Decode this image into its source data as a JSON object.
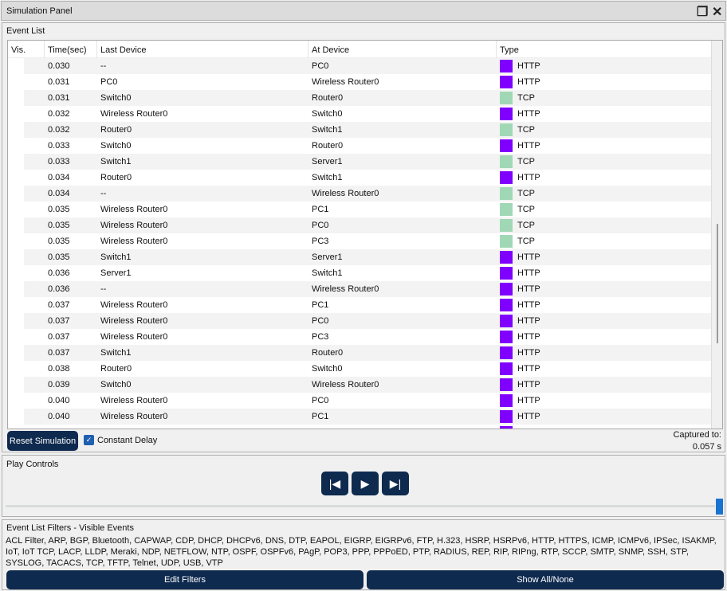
{
  "window": {
    "title": "Simulation Panel",
    "restore_icon": "restore-icon",
    "close_icon": "close-icon"
  },
  "event_list": {
    "label": "Event List",
    "columns": [
      "Vis.",
      "Time(sec)",
      "Last Device",
      "At Device",
      "Type"
    ],
    "type_colors": {
      "HTTP": "#8000ff",
      "TCP": "#a0d8b5"
    },
    "rows": [
      [
        "0.030",
        "--",
        "PC0",
        "HTTP"
      ],
      [
        "0.031",
        "PC0",
        "Wireless Router0",
        "HTTP"
      ],
      [
        "0.031",
        "Switch0",
        "Router0",
        "TCP"
      ],
      [
        "0.032",
        "Wireless Router0",
        "Switch0",
        "HTTP"
      ],
      [
        "0.032",
        "Router0",
        "Switch1",
        "TCP"
      ],
      [
        "0.033",
        "Switch0",
        "Router0",
        "HTTP"
      ],
      [
        "0.033",
        "Switch1",
        "Server1",
        "TCP"
      ],
      [
        "0.034",
        "Router0",
        "Switch1",
        "HTTP"
      ],
      [
        "0.034",
        "--",
        "Wireless Router0",
        "TCP"
      ],
      [
        "0.035",
        "Wireless Router0",
        "PC1",
        "TCP"
      ],
      [
        "0.035",
        "Wireless Router0",
        "PC0",
        "TCP"
      ],
      [
        "0.035",
        "Wireless Router0",
        "PC3",
        "TCP"
      ],
      [
        "0.035",
        "Switch1",
        "Server1",
        "HTTP"
      ],
      [
        "0.036",
        "Server1",
        "Switch1",
        "HTTP"
      ],
      [
        "0.036",
        "--",
        "Wireless Router0",
        "HTTP"
      ],
      [
        "0.037",
        "Wireless Router0",
        "PC1",
        "HTTP"
      ],
      [
        "0.037",
        "Wireless Router0",
        "PC0",
        "HTTP"
      ],
      [
        "0.037",
        "Wireless Router0",
        "PC3",
        "HTTP"
      ],
      [
        "0.037",
        "Switch1",
        "Router0",
        "HTTP"
      ],
      [
        "0.038",
        "Router0",
        "Switch0",
        "HTTP"
      ],
      [
        "0.039",
        "Switch0",
        "Wireless Router0",
        "HTTP"
      ],
      [
        "0.040",
        "Wireless Router0",
        "PC0",
        "HTTP"
      ],
      [
        "0.040",
        "Wireless Router0",
        "PC1",
        "HTTP"
      ],
      [
        "",
        "",
        "",
        "HTTP"
      ]
    ],
    "reset_label": "Reset Simulation",
    "constant_delay_label": "Constant Delay",
    "constant_delay_checked": true,
    "captured_label": "Captured to:",
    "captured_value": "0.057 s"
  },
  "play_controls": {
    "label": "Play Controls",
    "back_icon": "step-back-icon",
    "play_icon": "play-icon",
    "forward_icon": "step-forward-icon",
    "slider_value": 1.0
  },
  "filters": {
    "label": "Event List Filters - Visible Events",
    "text": "ACL Filter, ARP, BGP, Bluetooth, CAPWAP, CDP, DHCP, DHCPv6, DNS, DTP, EAPOL, EIGRP, EIGRPv6, FTP, H.323, HSRP, HSRPv6, HTTP, HTTPS, ICMP, ICMPv6, IPSec, ISAKMP, IoT, IoT TCP, LACP, LLDP, Meraki, NDP, NETFLOW, NTP, OSPF, OSPFv6, PAgP, POP3, PPP, PPPoED, PTP, RADIUS, REP, RIP, RIPng, RTP, SCCP, SMTP, SNMP, SSH, STP, SYSLOG, TACACS, TCP, TFTP, Telnet, UDP, USB, VTP",
    "edit_label": "Edit Filters",
    "show_all_label": "Show All/None"
  }
}
